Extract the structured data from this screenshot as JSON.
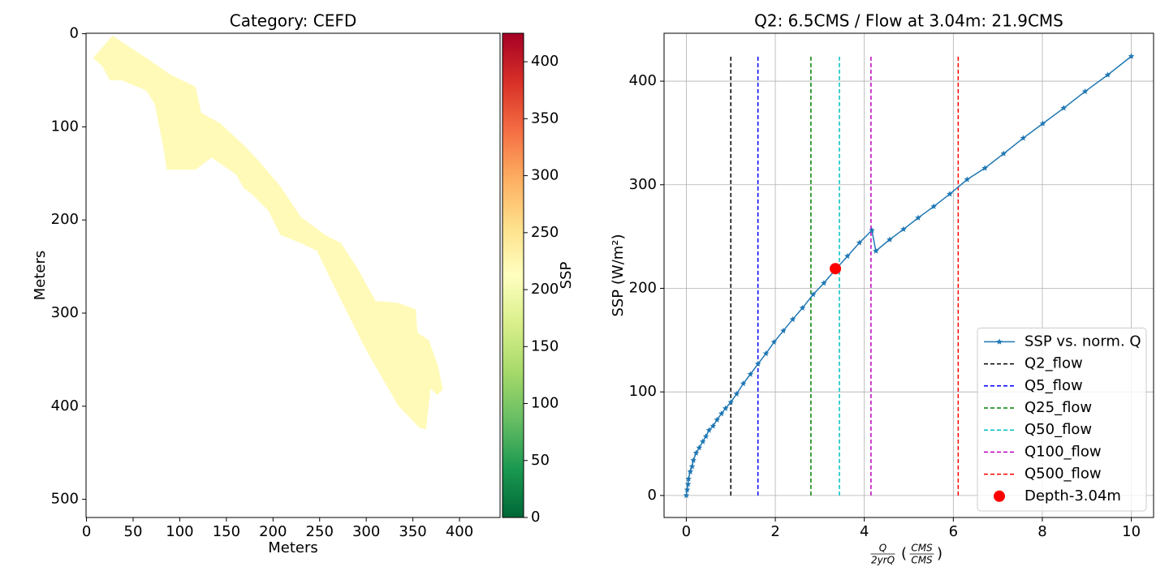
{
  "chart_data": [
    {
      "type": "map",
      "title": "Category: CEFD",
      "xlabel": "Meters",
      "ylabel": "Meters",
      "xlim": [
        -0.5,
        443.5
      ],
      "ylim": [
        519.5,
        -0.5
      ],
      "xticks": [
        0,
        50,
        100,
        150,
        200,
        250,
        300,
        350,
        400
      ],
      "yticks": [
        0,
        100,
        200,
        300,
        400,
        500
      ],
      "region": {
        "value": 219,
        "x": [
          7,
          28,
          38,
          64,
          90,
          117,
          123,
          143,
          169,
          186,
          208,
          230,
          256,
          273,
          290,
          310,
          334,
          353,
          355,
          367,
          377,
          382,
          376,
          369,
          364,
          357,
          334,
          299,
          264,
          247,
          230,
          208,
          195,
          177,
          169,
          160,
          134,
          117,
          86,
          82,
          73,
          64,
          38,
          25,
          17
        ],
        "y": [
          26,
          2,
          9,
          26,
          44,
          57,
          85,
          96,
          120,
          138,
          164,
          197,
          216,
          225,
          251,
          287,
          289,
          296,
          321,
          329,
          357,
          382,
          388,
          381,
          425,
          423,
          399,
          338,
          268,
          233,
          225,
          216,
          190,
          172,
          166,
          151,
          133,
          146,
          146,
          120,
          75,
          61,
          50,
          50,
          35
        ]
      },
      "colorbar": {
        "label": "SSP",
        "lim": [
          0,
          425
        ],
        "ticks": [
          0,
          50,
          100,
          150,
          200,
          250,
          300,
          350,
          400
        ],
        "colormap": [
          "#006837",
          "#1a9850",
          "#66bd63",
          "#a6d96a",
          "#d9ef8b",
          "#ffffbf",
          "#fee08b",
          "#fdae61",
          "#f46d43",
          "#d73027",
          "#a50026"
        ]
      }
    },
    {
      "type": "line",
      "title": "Q2: 6.5CMS / Flow at 3.04m: 21.9CMS",
      "xlabel": {
        "numerator": "Q",
        "denominator": "2yrQ",
        "open": "(",
        "unit_numerator": "CMS",
        "unit_denominator": "CMS",
        "close": ")"
      },
      "ylabel": "SSP (W/m²)",
      "xlim": [
        -0.5,
        10.5
      ],
      "ylim": [
        -21.25,
        446.25
      ],
      "xticks": [
        0,
        2,
        4,
        6,
        8,
        10
      ],
      "yticks": [
        0,
        100,
        200,
        300,
        400
      ],
      "grid": true,
      "legend": "lower right",
      "series": [
        {
          "name": "SSP vs. norm. Q",
          "color": "#1f77b4",
          "x": [
            0,
            0.02,
            0.04,
            0.05,
            0.09,
            0.13,
            0.16,
            0.22,
            0.29,
            0.37,
            0.44,
            0.51,
            0.6,
            0.69,
            0.79,
            0.88,
            1.0,
            1.13,
            1.28,
            1.44,
            1.61,
            1.79,
            1.97,
            2.18,
            2.39,
            2.61,
            2.85,
            3.09,
            3.35,
            3.62,
            3.89,
            4.17,
            4.26,
            4.57,
            4.88,
            5.21,
            5.56,
            5.92,
            6.31,
            6.71,
            7.13,
            7.57,
            8.01,
            8.48,
            8.96,
            9.47,
            10
          ],
          "values": [
            0,
            5.5,
            11,
            16,
            23,
            28,
            34,
            41,
            46,
            52,
            57,
            63,
            67,
            73,
            79,
            84,
            90,
            98,
            108,
            117,
            127,
            137,
            148,
            159,
            170,
            181,
            194,
            205,
            218,
            231,
            244,
            256,
            236,
            247,
            257,
            268,
            279,
            291,
            305,
            316,
            330,
            345,
            359,
            374,
            390,
            406,
            424
          ]
        }
      ],
      "vline_span": [
        0,
        424
      ],
      "vlines": [
        {
          "name": "Q2_flow",
          "color": "#000000",
          "x": 1.0
        },
        {
          "name": "Q5_flow",
          "color": "#0000ff",
          "x": 1.61
        },
        {
          "name": "Q25_flow",
          "color": "#008000",
          "x": 2.8
        },
        {
          "name": "Q50_flow",
          "color": "#00bfbf",
          "x": 3.44
        },
        {
          "name": "Q100_flow",
          "color": "#bf00bf",
          "x": 4.15
        },
        {
          "name": "Q500_flow",
          "color": "#ff0000",
          "x": 6.11
        }
      ],
      "points": [
        {
          "name": "Depth-3.04m",
          "color": "#ff0000",
          "x": 3.35,
          "y": 219
        }
      ]
    }
  ]
}
